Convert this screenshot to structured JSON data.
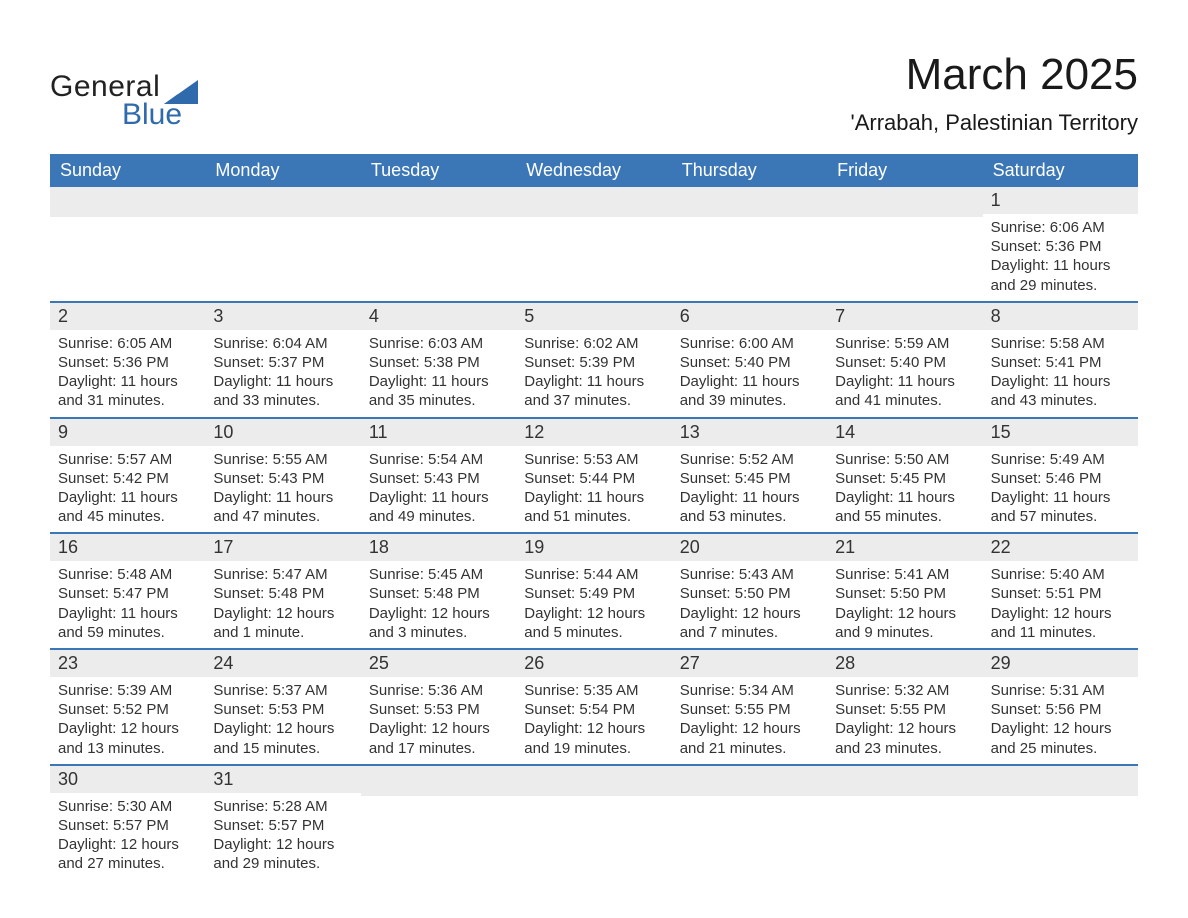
{
  "colors": {
    "header_bg": "#3b76b7",
    "header_fg": "#ffffff",
    "row_border": "#3b76b7",
    "daynum_bg": "#ececec",
    "text": "#2d2d2d",
    "logo_blue": "#2f6aad",
    "background": "#ffffff"
  },
  "logo": {
    "line1": "General",
    "line2": "Blue"
  },
  "title": "March 2025",
  "subtitle": "'Arrabah, Palestinian Territory",
  "day_headers": [
    "Sunday",
    "Monday",
    "Tuesday",
    "Wednesday",
    "Thursday",
    "Friday",
    "Saturday"
  ],
  "weeks": [
    [
      {
        "day": "",
        "sunrise": "",
        "sunset": "",
        "daylight": ""
      },
      {
        "day": "",
        "sunrise": "",
        "sunset": "",
        "daylight": ""
      },
      {
        "day": "",
        "sunrise": "",
        "sunset": "",
        "daylight": ""
      },
      {
        "day": "",
        "sunrise": "",
        "sunset": "",
        "daylight": ""
      },
      {
        "day": "",
        "sunrise": "",
        "sunset": "",
        "daylight": ""
      },
      {
        "day": "",
        "sunrise": "",
        "sunset": "",
        "daylight": ""
      },
      {
        "day": "1",
        "sunrise": "Sunrise: 6:06 AM",
        "sunset": "Sunset: 5:36 PM",
        "daylight": "Daylight: 11 hours and 29 minutes."
      }
    ],
    [
      {
        "day": "2",
        "sunrise": "Sunrise: 6:05 AM",
        "sunset": "Sunset: 5:36 PM",
        "daylight": "Daylight: 11 hours and 31 minutes."
      },
      {
        "day": "3",
        "sunrise": "Sunrise: 6:04 AM",
        "sunset": "Sunset: 5:37 PM",
        "daylight": "Daylight: 11 hours and 33 minutes."
      },
      {
        "day": "4",
        "sunrise": "Sunrise: 6:03 AM",
        "sunset": "Sunset: 5:38 PM",
        "daylight": "Daylight: 11 hours and 35 minutes."
      },
      {
        "day": "5",
        "sunrise": "Sunrise: 6:02 AM",
        "sunset": "Sunset: 5:39 PM",
        "daylight": "Daylight: 11 hours and 37 minutes."
      },
      {
        "day": "6",
        "sunrise": "Sunrise: 6:00 AM",
        "sunset": "Sunset: 5:40 PM",
        "daylight": "Daylight: 11 hours and 39 minutes."
      },
      {
        "day": "7",
        "sunrise": "Sunrise: 5:59 AM",
        "sunset": "Sunset: 5:40 PM",
        "daylight": "Daylight: 11 hours and 41 minutes."
      },
      {
        "day": "8",
        "sunrise": "Sunrise: 5:58 AM",
        "sunset": "Sunset: 5:41 PM",
        "daylight": "Daylight: 11 hours and 43 minutes."
      }
    ],
    [
      {
        "day": "9",
        "sunrise": "Sunrise: 5:57 AM",
        "sunset": "Sunset: 5:42 PM",
        "daylight": "Daylight: 11 hours and 45 minutes."
      },
      {
        "day": "10",
        "sunrise": "Sunrise: 5:55 AM",
        "sunset": "Sunset: 5:43 PM",
        "daylight": "Daylight: 11 hours and 47 minutes."
      },
      {
        "day": "11",
        "sunrise": "Sunrise: 5:54 AM",
        "sunset": "Sunset: 5:43 PM",
        "daylight": "Daylight: 11 hours and 49 minutes."
      },
      {
        "day": "12",
        "sunrise": "Sunrise: 5:53 AM",
        "sunset": "Sunset: 5:44 PM",
        "daylight": "Daylight: 11 hours and 51 minutes."
      },
      {
        "day": "13",
        "sunrise": "Sunrise: 5:52 AM",
        "sunset": "Sunset: 5:45 PM",
        "daylight": "Daylight: 11 hours and 53 minutes."
      },
      {
        "day": "14",
        "sunrise": "Sunrise: 5:50 AM",
        "sunset": "Sunset: 5:45 PM",
        "daylight": "Daylight: 11 hours and 55 minutes."
      },
      {
        "day": "15",
        "sunrise": "Sunrise: 5:49 AM",
        "sunset": "Sunset: 5:46 PM",
        "daylight": "Daylight: 11 hours and 57 minutes."
      }
    ],
    [
      {
        "day": "16",
        "sunrise": "Sunrise: 5:48 AM",
        "sunset": "Sunset: 5:47 PM",
        "daylight": "Daylight: 11 hours and 59 minutes."
      },
      {
        "day": "17",
        "sunrise": "Sunrise: 5:47 AM",
        "sunset": "Sunset: 5:48 PM",
        "daylight": "Daylight: 12 hours and 1 minute."
      },
      {
        "day": "18",
        "sunrise": "Sunrise: 5:45 AM",
        "sunset": "Sunset: 5:48 PM",
        "daylight": "Daylight: 12 hours and 3 minutes."
      },
      {
        "day": "19",
        "sunrise": "Sunrise: 5:44 AM",
        "sunset": "Sunset: 5:49 PM",
        "daylight": "Daylight: 12 hours and 5 minutes."
      },
      {
        "day": "20",
        "sunrise": "Sunrise: 5:43 AM",
        "sunset": "Sunset: 5:50 PM",
        "daylight": "Daylight: 12 hours and 7 minutes."
      },
      {
        "day": "21",
        "sunrise": "Sunrise: 5:41 AM",
        "sunset": "Sunset: 5:50 PM",
        "daylight": "Daylight: 12 hours and 9 minutes."
      },
      {
        "day": "22",
        "sunrise": "Sunrise: 5:40 AM",
        "sunset": "Sunset: 5:51 PM",
        "daylight": "Daylight: 12 hours and 11 minutes."
      }
    ],
    [
      {
        "day": "23",
        "sunrise": "Sunrise: 5:39 AM",
        "sunset": "Sunset: 5:52 PM",
        "daylight": "Daylight: 12 hours and 13 minutes."
      },
      {
        "day": "24",
        "sunrise": "Sunrise: 5:37 AM",
        "sunset": "Sunset: 5:53 PM",
        "daylight": "Daylight: 12 hours and 15 minutes."
      },
      {
        "day": "25",
        "sunrise": "Sunrise: 5:36 AM",
        "sunset": "Sunset: 5:53 PM",
        "daylight": "Daylight: 12 hours and 17 minutes."
      },
      {
        "day": "26",
        "sunrise": "Sunrise: 5:35 AM",
        "sunset": "Sunset: 5:54 PM",
        "daylight": "Daylight: 12 hours and 19 minutes."
      },
      {
        "day": "27",
        "sunrise": "Sunrise: 5:34 AM",
        "sunset": "Sunset: 5:55 PM",
        "daylight": "Daylight: 12 hours and 21 minutes."
      },
      {
        "day": "28",
        "sunrise": "Sunrise: 5:32 AM",
        "sunset": "Sunset: 5:55 PM",
        "daylight": "Daylight: 12 hours and 23 minutes."
      },
      {
        "day": "29",
        "sunrise": "Sunrise: 5:31 AM",
        "sunset": "Sunset: 5:56 PM",
        "daylight": "Daylight: 12 hours and 25 minutes."
      }
    ],
    [
      {
        "day": "30",
        "sunrise": "Sunrise: 5:30 AM",
        "sunset": "Sunset: 5:57 PM",
        "daylight": "Daylight: 12 hours and 27 minutes."
      },
      {
        "day": "31",
        "sunrise": "Sunrise: 5:28 AM",
        "sunset": "Sunset: 5:57 PM",
        "daylight": "Daylight: 12 hours and 29 minutes."
      },
      {
        "day": "",
        "sunrise": "",
        "sunset": "",
        "daylight": ""
      },
      {
        "day": "",
        "sunrise": "",
        "sunset": "",
        "daylight": ""
      },
      {
        "day": "",
        "sunrise": "",
        "sunset": "",
        "daylight": ""
      },
      {
        "day": "",
        "sunrise": "",
        "sunset": "",
        "daylight": ""
      },
      {
        "day": "",
        "sunrise": "",
        "sunset": "",
        "daylight": ""
      }
    ]
  ]
}
